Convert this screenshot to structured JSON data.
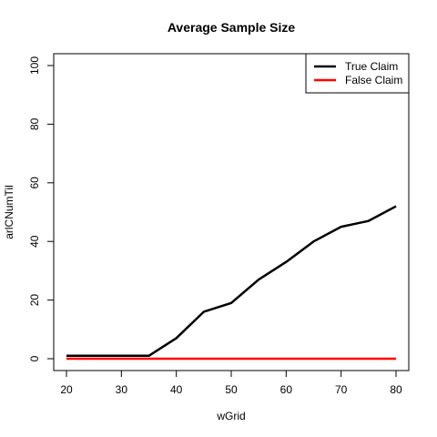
{
  "chart_data": {
    "type": "line",
    "title": "Average Sample Size",
    "xlabel": "wGrid",
    "ylabel": "arlCNumTil",
    "x": [
      20,
      25,
      30,
      35,
      40,
      45,
      50,
      55,
      60,
      65,
      70,
      75,
      80
    ],
    "xlim": [
      20,
      80
    ],
    "ylim": [
      0,
      100
    ],
    "x_ticks": [
      20,
      30,
      40,
      50,
      60,
      70,
      80
    ],
    "y_ticks": [
      0,
      20,
      40,
      60,
      80,
      100
    ],
    "grid": false,
    "legend_position": "top-right",
    "series": [
      {
        "name": "True Claim",
        "color": "#000000",
        "values": [
          1,
          1,
          1,
          1,
          7,
          16,
          19,
          27,
          33,
          40,
          45,
          47,
          52
        ]
      },
      {
        "name": "False Claim",
        "color": "#ff0000",
        "values": [
          0,
          0,
          0,
          0,
          0,
          0,
          0,
          0,
          0,
          0,
          0,
          0,
          0
        ]
      }
    ]
  }
}
